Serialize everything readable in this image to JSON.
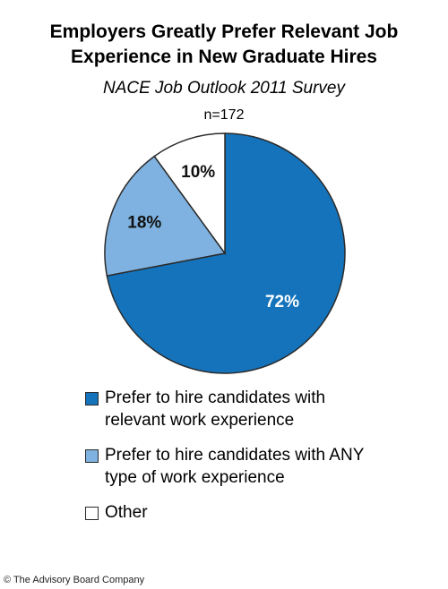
{
  "title_line1": "Employers Greatly Prefer Relevant Job",
  "title_line2": "Experience in New Graduate Hires",
  "subtitle": "NACE Job Outlook 2011 Survey",
  "sample_size": "n=172",
  "footer": "© The Advisory Board Company",
  "chart_data": {
    "type": "pie",
    "title": "Employers Greatly Prefer Relevant Job Experience in New Graduate Hires",
    "subtitle": "NACE Job Outlook 2011 Survey",
    "slices": [
      {
        "label": "Prefer to hire candidates with relevant work experience",
        "value": 72,
        "display": "72%",
        "color": "#1473bb",
        "label_color": "#ffffff"
      },
      {
        "label": "Prefer to hire candidates with ANY type of work experience",
        "value": 18,
        "display": "18%",
        "color": "#7fb2e0",
        "label_color": "#111111"
      },
      {
        "label": "Other",
        "value": 10,
        "display": "10%",
        "color": "#ffffff",
        "label_color": "#111111"
      }
    ],
    "legend_placement": "bottom"
  },
  "legend": [
    {
      "text": "Prefer to hire candidates with\nrelevant work experience",
      "color": "#1473bb"
    },
    {
      "text": "Prefer to hire candidates with ANY\ntype of work experience",
      "color": "#7fb2e0"
    },
    {
      "text": "Other",
      "color": "#ffffff"
    }
  ]
}
